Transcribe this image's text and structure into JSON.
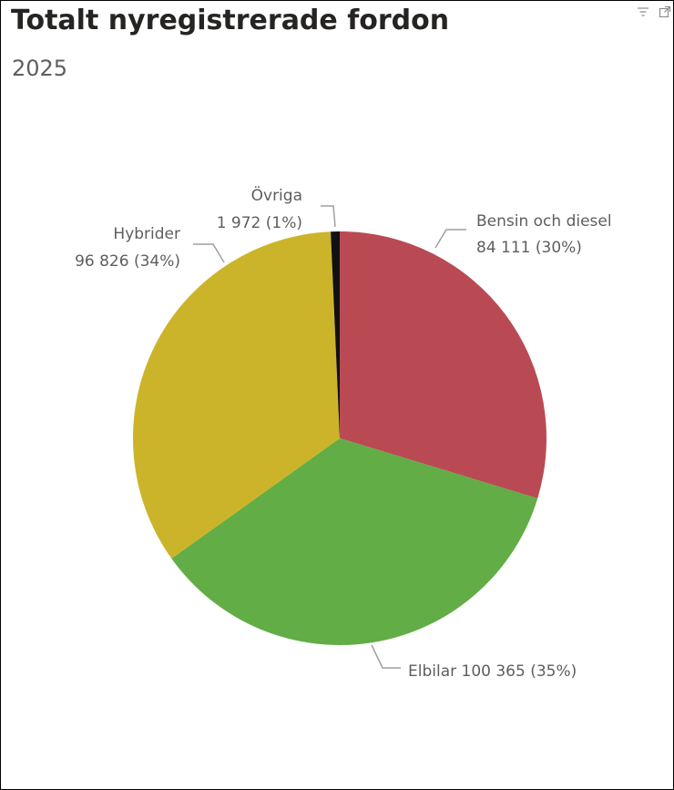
{
  "visual": {
    "title": "Totalt nyregistrerade fordon",
    "subtitle": "2025",
    "header_icons": [
      "filter-icon",
      "focus-mode-icon"
    ]
  },
  "chart_data": {
    "type": "pie",
    "title": "Totalt nyregistrerade fordon",
    "subtitle": "2025",
    "legend": "none",
    "slices": [
      {
        "name": "Bensin och diesel",
        "value": 84111,
        "value_label": "84 111",
        "percent_label": "30%",
        "color": "#B94A54"
      },
      {
        "name": "Elbilar",
        "value": 100365,
        "value_label": "100 365",
        "percent_label": "35%",
        "color": "#62AD45"
      },
      {
        "name": "Hybrider",
        "value": 96826,
        "value_label": "96 826",
        "percent_label": "34%",
        "color": "#CBB429"
      },
      {
        "name": "Övriga",
        "value": 1972,
        "value_label": "1 972",
        "percent_label": "1%",
        "color": "#111111"
      }
    ]
  }
}
